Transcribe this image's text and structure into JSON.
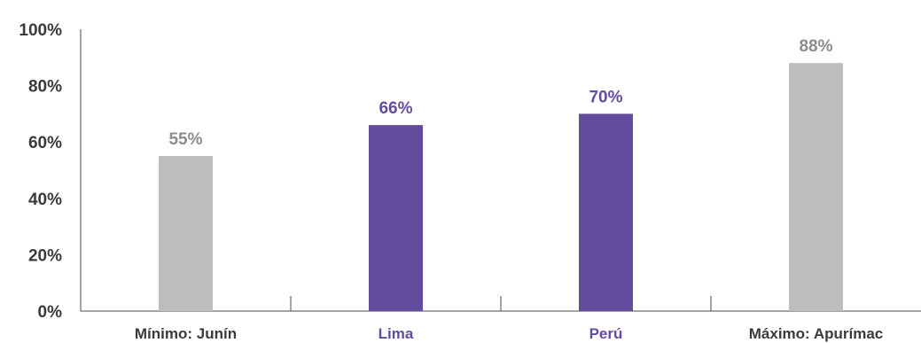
{
  "chart_data": {
    "type": "bar",
    "categories": [
      "Mínimo: Junín",
      "Lima",
      "Perú",
      "Máximo: Apurímac"
    ],
    "values": [
      55,
      66,
      70,
      88
    ],
    "data_labels": [
      "55%",
      "66%",
      "70%",
      "88%"
    ],
    "ylim": [
      0,
      100
    ],
    "yticks": [
      0,
      20,
      40,
      60,
      80,
      100
    ],
    "ytick_labels": [
      "0%",
      "20%",
      "40%",
      "60%",
      "80%",
      "100%"
    ],
    "bar_colors": [
      "#bcbdbc",
      "#634b9e",
      "#634b9e",
      "#bcbdbc"
    ],
    "label_colors": [
      "#8c8c8c",
      "#634b9e",
      "#634b9e",
      "#8c8c8c"
    ],
    "xtick_colors": [
      "#3a3a3a",
      "#634b9e",
      "#634b9e",
      "#3a3a3a"
    ],
    "grid": false,
    "title": "",
    "xlabel": "",
    "ylabel": ""
  }
}
